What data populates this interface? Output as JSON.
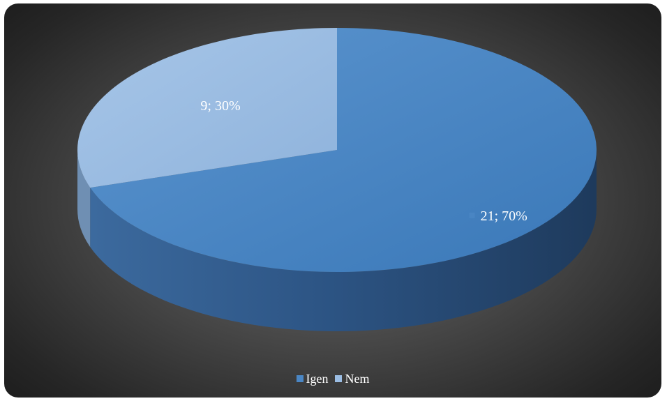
{
  "chart_data": {
    "type": "pie",
    "three_d": true,
    "categories": [
      "Igen",
      "Nem"
    ],
    "values": [
      21,
      9
    ],
    "percent_labels": [
      "70%",
      "30%"
    ],
    "data_labels": [
      "21; 70%",
      "9; 30%"
    ],
    "colors": [
      "#4a86c4",
      "#9bbde3"
    ],
    "side_colors": [
      "#2a4e78",
      "#6f8fb3"
    ],
    "legend": {
      "position": "bottom",
      "entries": [
        "Igen",
        "Nem"
      ]
    },
    "title": ""
  }
}
